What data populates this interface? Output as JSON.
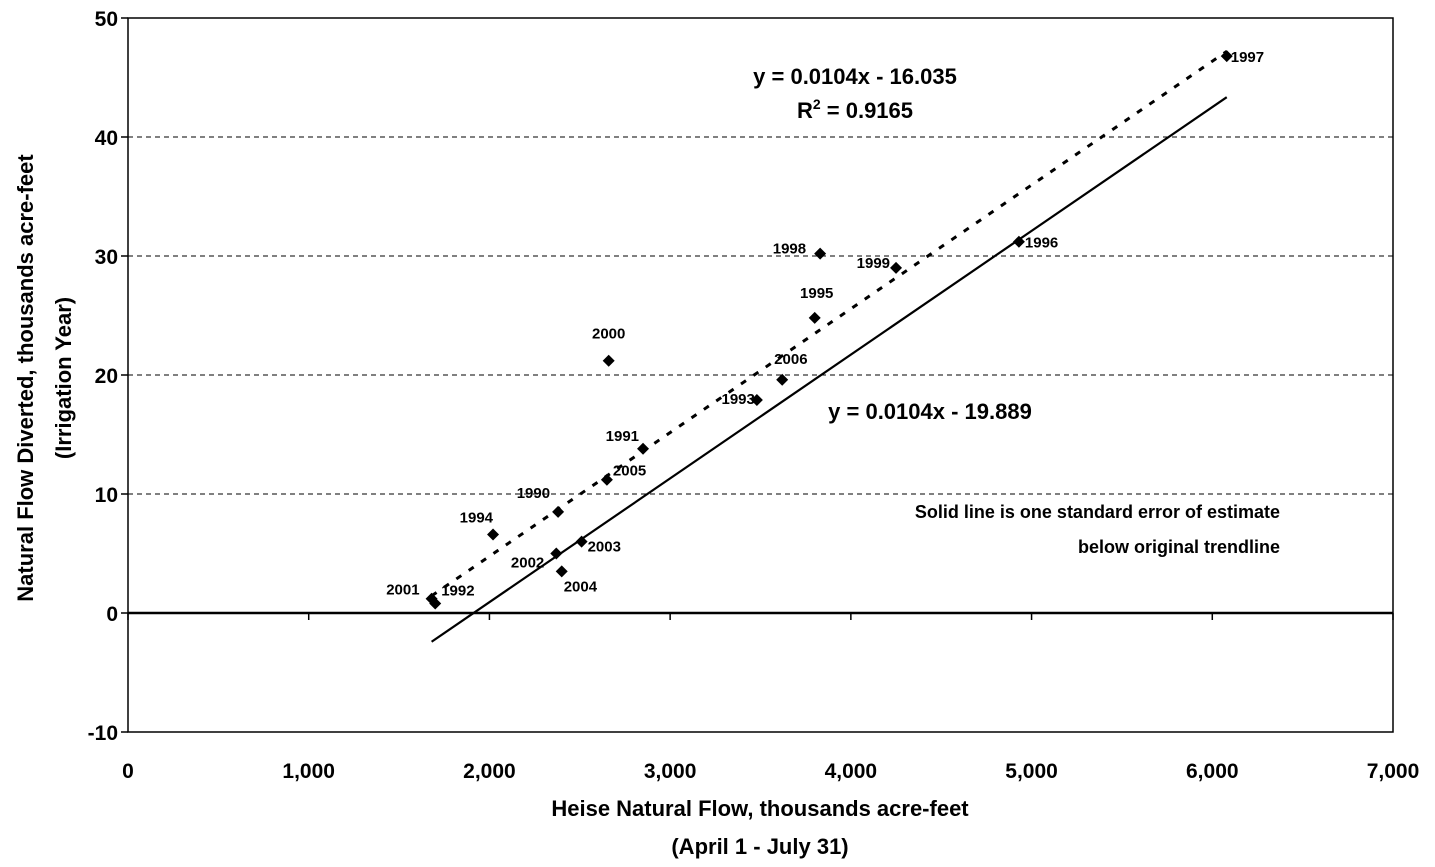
{
  "chart_data": {
    "type": "scatter",
    "xlabel": "Heise Natural Flow, thousands acre-feet",
    "xlabel_sub": "(April 1 - July 31)",
    "ylabel": "Natural Flow Diverted, thousands acre-feet",
    "ylabel_sub": "(Irrigation Year)",
    "xlim": [
      0,
      7000
    ],
    "ylim": [
      -10,
      50
    ],
    "xticks": [
      {
        "value": 0,
        "label": "0"
      },
      {
        "value": 1000,
        "label": "1,000"
      },
      {
        "value": 2000,
        "label": "2,000"
      },
      {
        "value": 3000,
        "label": "3,000"
      },
      {
        "value": 4000,
        "label": "4,000"
      },
      {
        "value": 5000,
        "label": "5,000"
      },
      {
        "value": 6000,
        "label": "6,000"
      },
      {
        "value": 7000,
        "label": "7,000"
      }
    ],
    "yticks": [
      {
        "value": -10,
        "label": "-10"
      },
      {
        "value": 0,
        "label": "0"
      },
      {
        "value": 10,
        "label": "10"
      },
      {
        "value": 20,
        "label": "20"
      },
      {
        "value": 30,
        "label": "30"
      },
      {
        "value": 40,
        "label": "40"
      },
      {
        "value": 50,
        "label": "50"
      }
    ],
    "grid": "horizontal dashed",
    "points": [
      {
        "label": "1990",
        "x": 2380,
        "y": 8.5
      },
      {
        "label": "1991",
        "x": 2850,
        "y": 13.8
      },
      {
        "label": "1992",
        "x": 1700,
        "y": 0.8
      },
      {
        "label": "1993",
        "x": 3480,
        "y": 17.9
      },
      {
        "label": "1994",
        "x": 2020,
        "y": 6.6
      },
      {
        "label": "1995",
        "x": 3800,
        "y": 24.8
      },
      {
        "label": "1996",
        "x": 4930,
        "y": 31.2
      },
      {
        "label": "1997",
        "x": 6080,
        "y": 46.8
      },
      {
        "label": "1998",
        "x": 3830,
        "y": 30.2
      },
      {
        "label": "1999",
        "x": 4250,
        "y": 29.0
      },
      {
        "label": "2000",
        "x": 2660,
        "y": 21.2
      },
      {
        "label": "2001",
        "x": 1680,
        "y": 1.2
      },
      {
        "label": "2002",
        "x": 2370,
        "y": 5.0
      },
      {
        "label": "2003",
        "x": 2510,
        "y": 6.0
      },
      {
        "label": "2004",
        "x": 2400,
        "y": 3.5
      },
      {
        "label": "2005",
        "x": 2650,
        "y": 11.2
      },
      {
        "label": "2006",
        "x": 3620,
        "y": 19.6
      }
    ],
    "trendlines": [
      {
        "style": "dashed",
        "slope": 0.0104,
        "intercept": -16.035,
        "x_range": [
          1680,
          6080
        ],
        "equation": "y = 0.0104x - 16.035",
        "r2_prefix": "R",
        "r2_sup": "2",
        "r2_suffix": " = 0.9165"
      },
      {
        "style": "solid",
        "slope": 0.0104,
        "intercept": -19.889,
        "x_range": [
          1680,
          6080
        ],
        "equation": "y = 0.0104x - 19.889"
      }
    ],
    "annotation": {
      "line1": "Solid line is one standard error of estimate",
      "line2": "below original trendline"
    }
  }
}
